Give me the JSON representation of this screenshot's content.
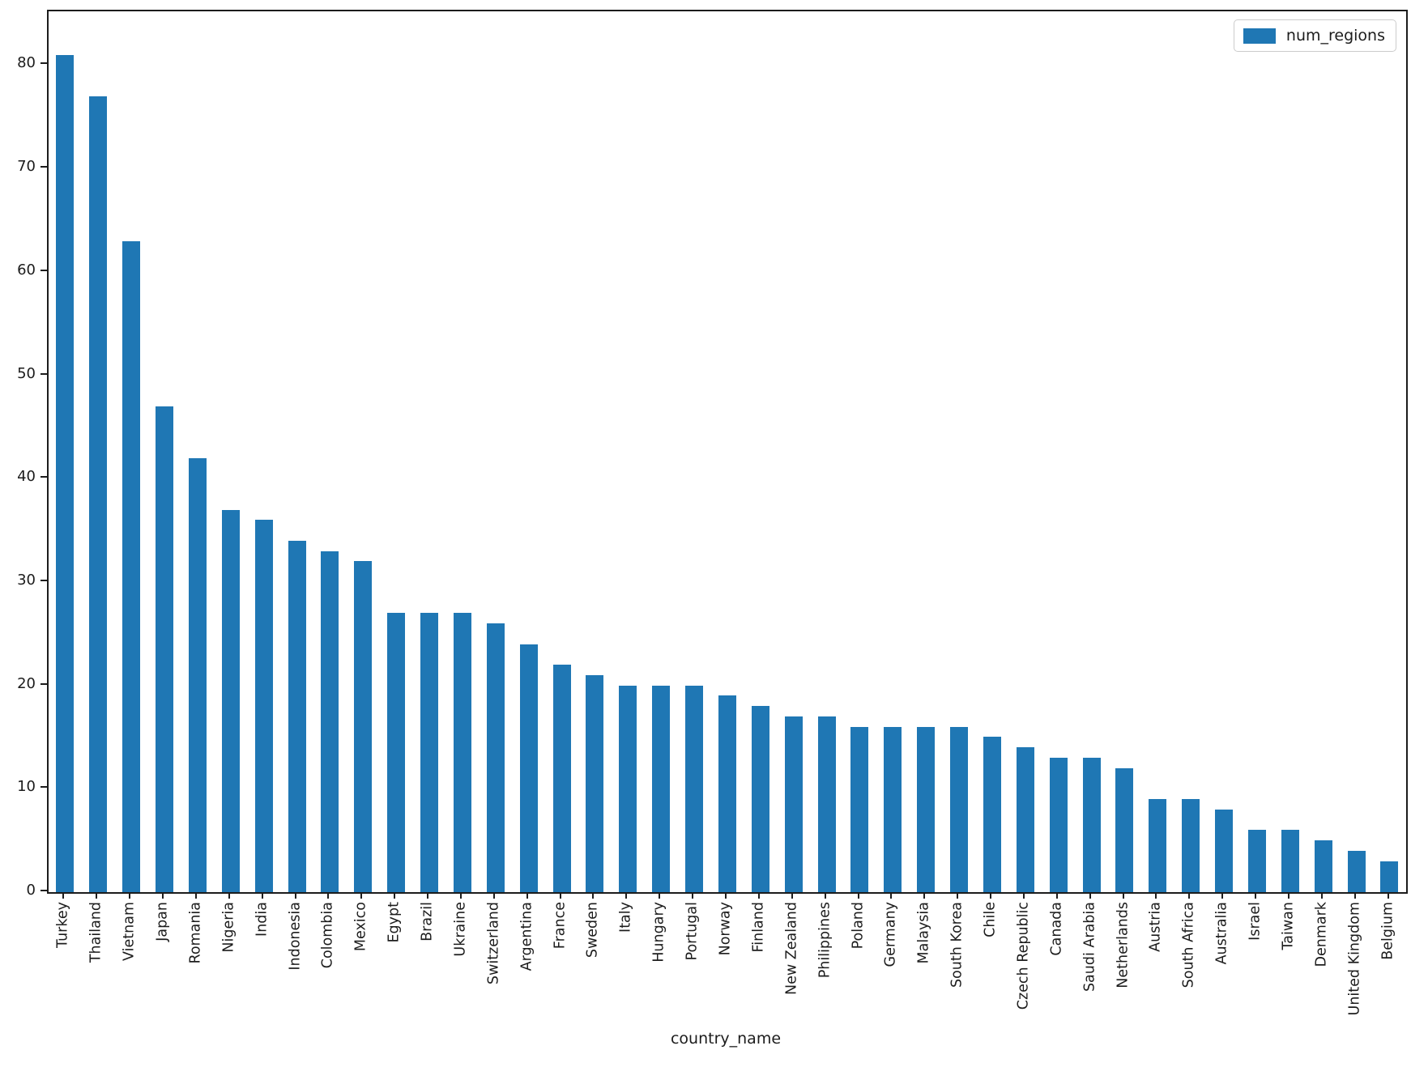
{
  "chart_data": {
    "type": "bar",
    "title": "",
    "xlabel": "country_name",
    "ylabel": "",
    "legend": {
      "label": "num_regions",
      "position": "upper right"
    },
    "bar_color": "#1f77b4",
    "grid": false,
    "ylim": [
      0,
      85
    ],
    "yticks": [
      0,
      10,
      20,
      30,
      40,
      50,
      60,
      70,
      80
    ],
    "categories": [
      "Turkey",
      "Thailand",
      "Vietnam",
      "Japan",
      "Romania",
      "Nigeria",
      "India",
      "Indonesia",
      "Colombia",
      "Mexico",
      "Egypt",
      "Brazil",
      "Ukraine",
      "Switzerland",
      "Argentina",
      "France",
      "Sweden",
      "Italy",
      "Hungary",
      "Portugal",
      "Norway",
      "Finland",
      "New Zealand",
      "Philippines",
      "Poland",
      "Germany",
      "Malaysia",
      "South Korea",
      "Chile",
      "Czech Republic",
      "Canada",
      "Saudi Arabia",
      "Netherlands",
      "Austria",
      "South Africa",
      "Australia",
      "Israel",
      "Taiwan",
      "Denmark",
      "United Kingdom",
      "Belgium"
    ],
    "values": [
      81,
      77,
      63,
      47,
      42,
      37,
      36,
      34,
      33,
      32,
      27,
      27,
      27,
      26,
      24,
      22,
      21,
      20,
      20,
      20,
      19,
      18,
      17,
      17,
      16,
      16,
      16,
      16,
      15,
      14,
      13,
      13,
      12,
      9,
      9,
      8,
      6,
      6,
      5,
      4,
      3
    ]
  }
}
